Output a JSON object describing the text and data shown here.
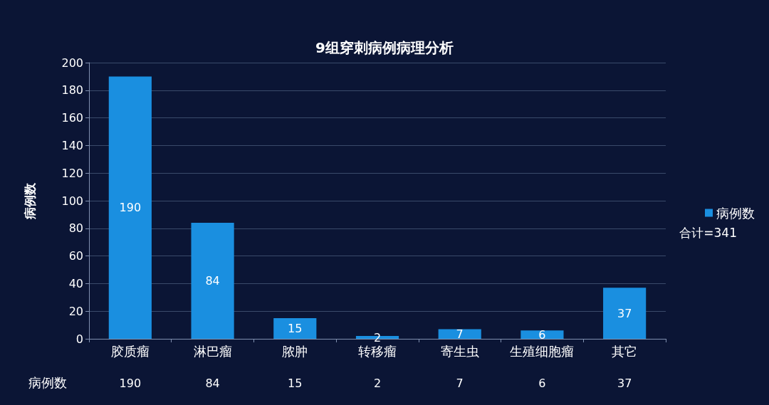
{
  "chart_data": {
    "type": "bar",
    "title": "9组穿刺病例病理分析",
    "ylabel": "病例数",
    "categories": [
      "胶质瘤",
      "淋巴瘤",
      "脓肿",
      "转移瘤",
      "寄生虫",
      "生殖细胞瘤",
      "其它"
    ],
    "series": [
      {
        "name": "病例数",
        "color": "#1a8fe0",
        "values": [
          190,
          84,
          15,
          2,
          7,
          6,
          37
        ]
      }
    ],
    "ylim": [
      0,
      200
    ],
    "yticks": [
      0,
      20,
      40,
      60,
      80,
      100,
      120,
      140,
      160,
      180,
      200
    ],
    "grid": "y",
    "legend": "right",
    "data_labels": true,
    "annotations": [
      "合计=341",
      "190",
      "84",
      "15",
      "2",
      "7",
      "6",
      "37"
    ]
  }
}
